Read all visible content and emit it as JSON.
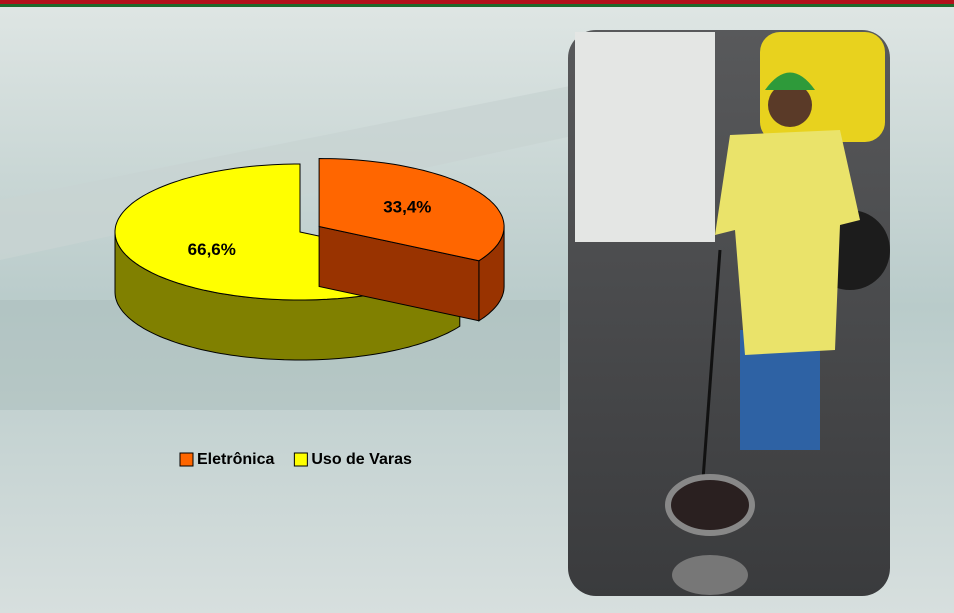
{
  "chart_data": {
    "type": "pie3d",
    "categories": [
      "Eletrônica",
      "Uso de Varas"
    ],
    "values": [
      33.4,
      66.6
    ],
    "value_labels": [
      "33,4%",
      "66,6%"
    ],
    "colors": [
      "#ff6600",
      "#ffff00"
    ],
    "side_colors": [
      "#993300",
      "#808000"
    ],
    "exploded": [
      true,
      false
    ],
    "legend": "bottom"
  }
}
